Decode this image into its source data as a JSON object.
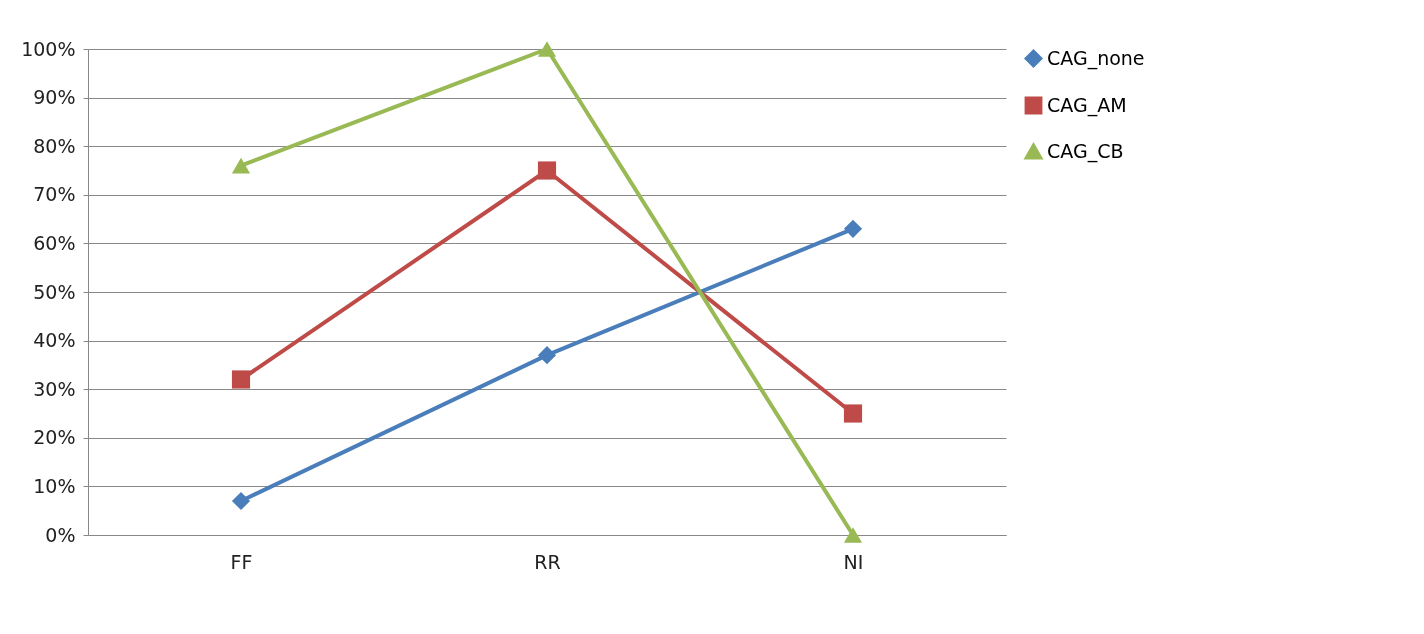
{
  "chart_data": {
    "type": "line",
    "categories": [
      "FF",
      "RR",
      "NI"
    ],
    "series": [
      {
        "name": "CAG_none",
        "color": "#4a7ebb",
        "marker": "diamond",
        "values": [
          7,
          37,
          63
        ]
      },
      {
        "name": "CAG_AM",
        "color": "#be4b48",
        "marker": "square",
        "values": [
          32,
          75,
          25
        ]
      },
      {
        "name": "CAG_CB",
        "color": "#98b954",
        "marker": "triangle",
        "values": [
          76,
          100,
          0
        ]
      }
    ],
    "ylim": [
      0,
      100
    ],
    "yticks": [
      {
        "value": 0,
        "label": "0%"
      },
      {
        "value": 10,
        "label": "10%"
      },
      {
        "value": 20,
        "label": "20%"
      },
      {
        "value": 30,
        "label": "30%"
      },
      {
        "value": 40,
        "label": "40%"
      },
      {
        "value": 50,
        "label": "50%"
      },
      {
        "value": 60,
        "label": "60%"
      },
      {
        "value": 70,
        "label": "70%"
      },
      {
        "value": 80,
        "label": "80%"
      },
      {
        "value": 90,
        "label": "90%"
      },
      {
        "value": 100,
        "label": "100%"
      }
    ],
    "grid": "y",
    "legend": "right",
    "line_style": "solid"
  }
}
